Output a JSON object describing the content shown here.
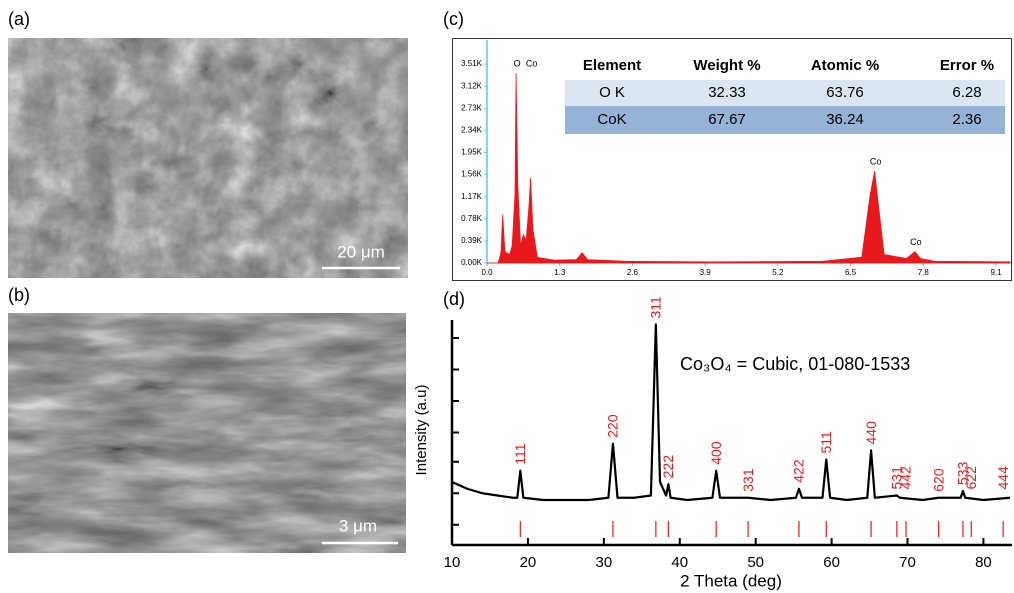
{
  "panels": {
    "a": {
      "label": "(a)",
      "scale_bar": "20 μm"
    },
    "b": {
      "label": "(b)",
      "scale_bar": "3 μm"
    }
  },
  "chart_data": [
    {
      "type": "area",
      "label": "(c)",
      "color": "#e8191c",
      "x": [
        0,
        0.2,
        0.25,
        0.28,
        0.32,
        0.4,
        0.45,
        0.5,
        0.52,
        0.55,
        0.6,
        0.65,
        0.7,
        0.75,
        0.78,
        0.82,
        0.9,
        1.2,
        1.6,
        1.7,
        1.8,
        2.5,
        4,
        6,
        6.7,
        6.85,
        6.93,
        7,
        7.1,
        7.5,
        7.65,
        7.75,
        8,
        9.35
      ],
      "values": [
        0,
        0,
        180,
        850,
        200,
        150,
        300,
        1200,
        3350,
        1400,
        300,
        500,
        400,
        1000,
        1500,
        600,
        100,
        50,
        60,
        180,
        60,
        30,
        20,
        30,
        100,
        1200,
        1620,
        1000,
        150,
        80,
        200,
        80,
        30,
        20
      ],
      "xlim": [
        0,
        9.35
      ],
      "xticks": [
        {
          "value": 0,
          "label": "0.0"
        },
        1.3,
        2.6,
        3.9,
        5.2,
        6.5,
        7.8,
        9.1
      ],
      "ylim": [
        0,
        3900
      ],
      "yticks": [
        {
          "value": 0,
          "label": "0.00K"
        },
        {
          "value": 390,
          "label": "0.39K"
        },
        {
          "value": 780,
          "label": "0.78K"
        },
        {
          "value": 1170,
          "label": "1.17K"
        },
        {
          "value": 1560,
          "label": "1.56K"
        },
        {
          "value": 1950,
          "label": "1.95K"
        },
        {
          "value": 2340,
          "label": "2.34K"
        },
        {
          "value": 2730,
          "label": "2.73K"
        },
        {
          "value": 3120,
          "label": "3.12K"
        },
        {
          "value": 3510,
          "label": "3.51K"
        }
      ],
      "annotations": [
        {
          "text": "O",
          "x": 0.52
        },
        {
          "text": "Co",
          "x": 0.78
        },
        {
          "text": "Co",
          "x": 6.93
        },
        {
          "text": "Co",
          "x": 7.65
        }
      ],
      "table": {
        "columns": [
          "Element",
          "Weight %",
          "Atomic %",
          "Error %"
        ],
        "rows": [
          [
            "O K",
            32.33,
            63.76,
            6.28
          ],
          [
            "CoK",
            67.67,
            36.24,
            2.36
          ]
        ]
      }
    },
    {
      "type": "line",
      "label": "(d)",
      "title": "Co₃O₄ = Cubic, 01-080-1533",
      "x_label": "2 Theta (deg)",
      "y_label": "Intensity (a.u)",
      "color": "#000000",
      "peak_color": "#e8191c",
      "x": [
        10,
        12,
        14,
        16,
        18,
        18.6,
        19,
        19.4,
        22,
        25,
        28,
        30.6,
        31.2,
        31.8,
        34,
        36.2,
        36.85,
        37.4,
        38.2,
        38.5,
        38.8,
        41,
        44.3,
        44.8,
        45.3,
        49,
        52,
        55.3,
        55.7,
        56.1,
        58.8,
        59.3,
        59.8,
        62,
        64.7,
        65.2,
        65.7,
        68.6,
        69,
        72,
        74.1,
        77,
        77.3,
        77.6,
        80,
        83.5
      ],
      "values": [
        28,
        25,
        23,
        22,
        21,
        21,
        33,
        21,
        20,
        20,
        20,
        21,
        45,
        21,
        21,
        22,
        98,
        28,
        22,
        27,
        21,
        20,
        21,
        33,
        21,
        21,
        20,
        21,
        25,
        21,
        21,
        38,
        21,
        20,
        21,
        42,
        21,
        22,
        21,
        20,
        21,
        21,
        24,
        21,
        20,
        21
      ],
      "xlim": [
        10,
        83.5
      ],
      "xticks": [
        10,
        20,
        30,
        40,
        50,
        60,
        70,
        80
      ],
      "ylim": [
        0,
        100
      ],
      "yticks": [
        9,
        23,
        37,
        50,
        64,
        78,
        92
      ],
      "peaks": [
        {
          "label": "111",
          "x": 19
        },
        {
          "label": "220",
          "x": 31.2
        },
        {
          "label": "311",
          "x": 36.85
        },
        {
          "label": "222",
          "x": 38.5
        },
        {
          "label": "400",
          "x": 44.8
        },
        {
          "label": "331",
          "x": 49
        },
        {
          "label": "422",
          "x": 55.7
        },
        {
          "label": "511",
          "x": 59.3
        },
        {
          "label": "440",
          "x": 65.2
        },
        {
          "label": "531",
          "x": 68.6
        },
        {
          "label": "442",
          "x": 69.8
        },
        {
          "label": "620",
          "x": 74.1
        },
        {
          "label": "533",
          "x": 77.3
        },
        {
          "label": "622",
          "x": 78.4
        },
        {
          "label": "444",
          "x": 82.6
        }
      ]
    }
  ]
}
